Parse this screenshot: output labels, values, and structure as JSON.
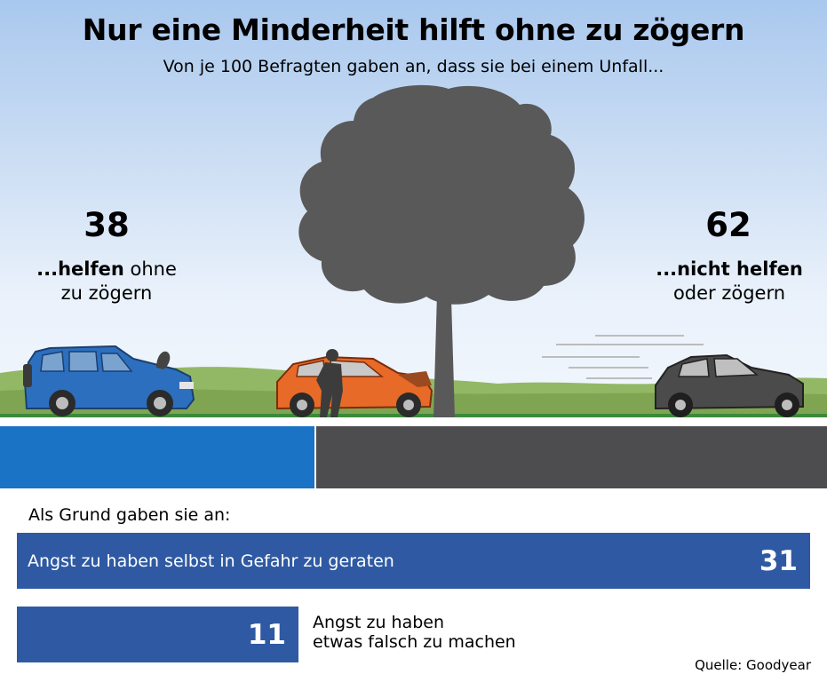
{
  "header": {
    "title": "Nur eine Minderheit hilft ohne zu zögern",
    "subtitle": "Von je 100 Befragten gaben an, dass sie bei einem Unfall..."
  },
  "left": {
    "value": "38",
    "label_bold": "...helfen",
    "label_rest": " ohne",
    "label_line2": "zu zögern"
  },
  "right": {
    "value": "62",
    "label_bold": "...nicht helfen",
    "label_line2": "oder zögern"
  },
  "reasons": {
    "heading": "Als Grund gaben sie an:",
    "items": [
      {
        "label": "Angst zu haben selbst in Gefahr zu geraten",
        "value": "31"
      },
      {
        "label_line1": "Angst zu haben",
        "label_line2": "etwas falsch zu machen",
        "value": "11"
      }
    ]
  },
  "source": "Quelle: Goodyear",
  "colors": {
    "help": "#1a73c4",
    "no_help": "#4d4d4f",
    "reason_bar": "#2f5aa3",
    "grass": "#8fb45e",
    "tree": "#555555"
  },
  "chart_data": [
    {
      "type": "bar",
      "stacked": true,
      "orientation": "horizontal",
      "total": 100,
      "categories": [
        "...helfen ohne zu zögern",
        "...nicht helfen oder zögern"
      ],
      "values": [
        38,
        62
      ],
      "colors": [
        "#1a73c4",
        "#4d4d4f"
      ]
    },
    {
      "type": "bar",
      "orientation": "horizontal",
      "title": "Als Grund gaben sie an:",
      "categories": [
        "Angst zu haben selbst in Gefahr zu geraten",
        "Angst zu haben etwas falsch zu machen"
      ],
      "values": [
        31,
        11
      ],
      "xlim": [
        0,
        31
      ]
    }
  ]
}
